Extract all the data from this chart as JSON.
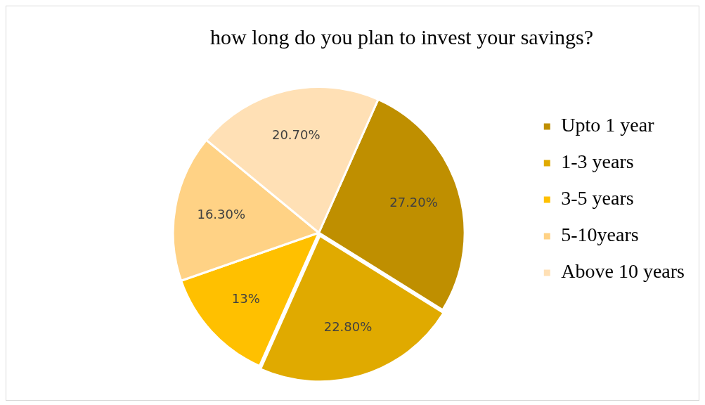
{
  "chart_data": {
    "type": "pie",
    "title": "how long do you plan to invest your savings?",
    "categories": [
      "Upto 1 year",
      "1-3 years",
      "3-5 years",
      "5-10years",
      "Above 10 years"
    ],
    "values": [
      27.2,
      22.8,
      13,
      16.3,
      20.7
    ],
    "value_labels": [
      "27.20%",
      "22.80%",
      "13%",
      "16.30%",
      "20.70%"
    ],
    "colors": [
      "#bf8f00",
      "#e0aa00",
      "#ffc000",
      "#ffd285",
      "#ffe0b5"
    ],
    "legend": "right"
  }
}
